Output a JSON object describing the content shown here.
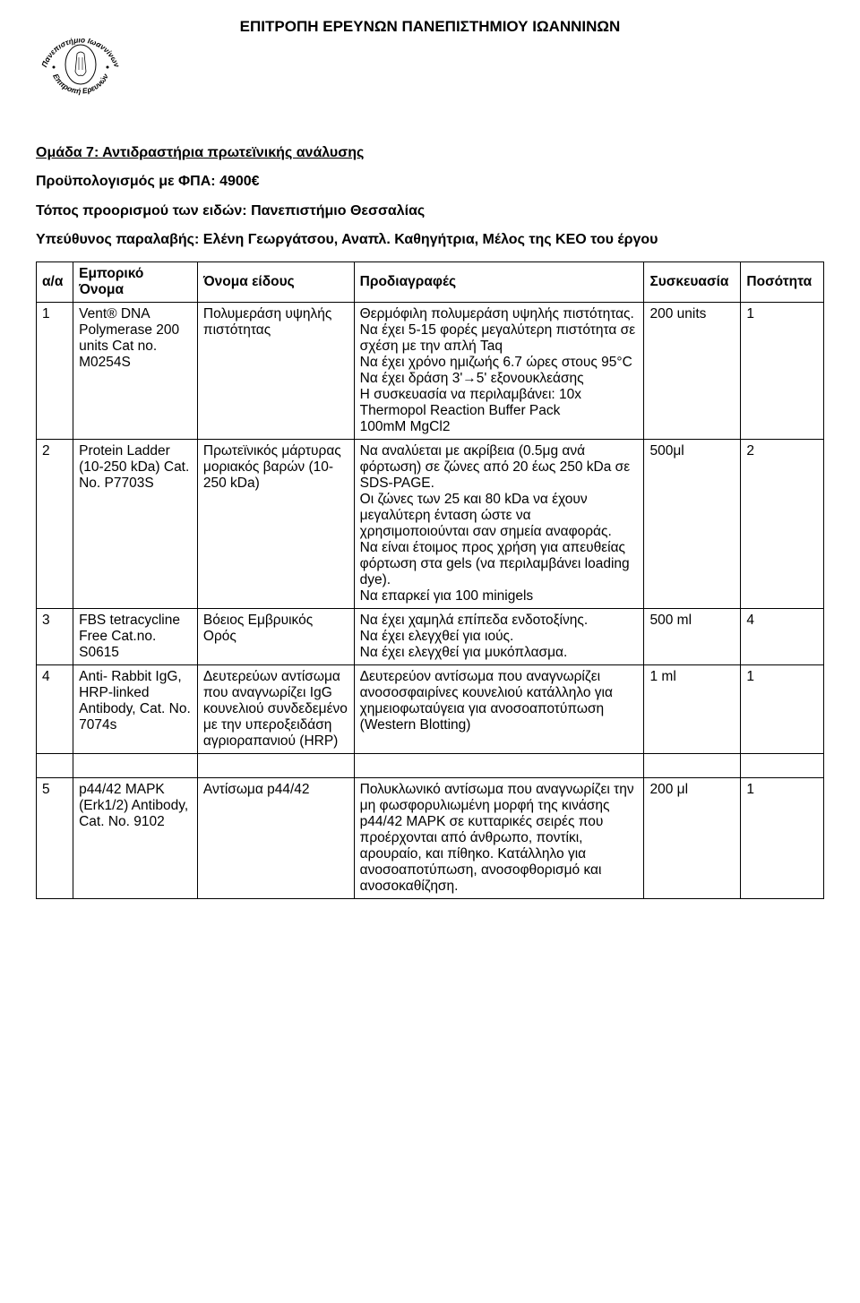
{
  "header_title": "ΕΠΙΤΡΟΠΗ ΕΡΕΥΝΩΝ ΠΑΝΕΠΙΣΤΗΜΙΟΥ ΙΩΑΝΝΙΝΩΝ",
  "seal": {
    "outer_top": "Πανεπιστήμιο Ιωαννίνων",
    "outer_bottom": "Επιτροπή Ερευνών"
  },
  "intro": {
    "group_title_label": "Ομάδα 7: Αντιδραστήρια πρωτεϊνικής ανάλυσης",
    "budget_label": "Προϋπολογισμός με ΦΠΑ:",
    "budget_value": "4900€",
    "dest_label": "Τόπος προορισμού των ειδών:",
    "dest_value": "Πανεπιστήμιο Θεσσαλίας",
    "recv_label": "Υπεύθυνος παραλαβής:",
    "recv_value": "Ελένη Γεωργάτσου, Αναπλ. Καθηγήτρια, Μέλος της ΚΕΟ του έργου"
  },
  "columns": {
    "aa": "α/α",
    "emporiko": "Εμπορικό Όνομα",
    "onoma_eidous": "Όνομα είδους",
    "prodiagrafes": "Προδιαγραφές",
    "syskeuasia": "Συσκευασία",
    "posotita": "Ποσότητα"
  },
  "rows": [
    {
      "aa": "1",
      "emporiko": "Vent® DNA Polymerase 200 units Cat no. M0254S",
      "onoma": "Πολυμεράση υψηλής πιστότητας",
      "spec": "Θερμόφιλη πολυμεράση υψηλής πιστότητας.\nΝα έχει 5-15 φορές μεγαλύτερη πιστότητα σε σχέση με την απλή Taq\nΝα έχει χρόνο ημιζωής 6.7 ώρες στους 95°C\nΝα έχει δράση 3'→5' εξονουκλεάσης\nΗ συσκευασία να περιλαμβάνει: 10x Thermopol Reaction Buffer Pack\n100mM MgCl2",
      "pack": "200 units",
      "qty": "1"
    },
    {
      "aa": "2",
      "emporiko": "Protein Ladder (10-250 kDa) Cat. No. P7703S",
      "onoma": "Πρωτεϊνικός μάρτυρας μοριακός βαρών (10-250 kDa)",
      "spec": "Να αναλύεται με ακρίβεια (0.5μg ανά φόρτωση) σε ζώνες από 20 έως 250 kDa σε SDS-PAGE.\nΟι ζώνες των 25 και 80 kDa να έχουν μεγαλύτερη ένταση ώστε να χρησιμοποιούνται σαν σημεία αναφοράς.\nΝα είναι έτοιμος προς χρήση για απευθείας φόρτωση στα gels (να περιλαμβάνει loading dye).\nΝα επαρκεί για 100 minigels",
      "pack": "500μl",
      "qty": "2"
    },
    {
      "aa": "3",
      "emporiko": "FBS tetracycline Free Cat.no. S0615",
      "onoma": "Βόειος Εμβρυικός Ορός",
      "spec": "Να έχει χαμηλά επίπεδα ενδοτοξίνης.\nΝα έχει ελεγχθεί για ιούς.\nΝα έχει ελεγχθεί για μυκόπλασμα.",
      "pack": "500 ml",
      "qty": "4"
    },
    {
      "aa": "4",
      "emporiko": "Anti- Rabbit IgG, HRP-linked Antibody, Cat. No. 7074s",
      "onoma": "Δευτερεύων αντίσωμα που αναγνωρίζει IgG κουνελιού συνδεδεμένο με την υπεροξειδάση αγριοραπανιού (HRP)",
      "spec": "Δευτερεύον αντίσωμα που αναγνωρίζει ανοσοσφαιρίνες κουνελιού κατάλληλο για χημειοφωταύγεια για ανοσοαποτύπωση (Western Blotting)",
      "pack": "1 ml",
      "qty": "1"
    },
    {
      "aa": "5",
      "emporiko": "p44/42 MAPK (Erk1/2) Antibody, Cat. No. 9102",
      "onoma": "Αντίσωμα p44/42",
      "spec": "Πολυκλωνικό αντίσωμα που αναγνωρίζει την μη φωσφορυλιωμένη μορφή της κινάσης p44/42 MAPK σε κυτταρικές σειρές που προέρχονται από άνθρωπο, ποντίκι, αρουραίο, και πίθηκο. Κατάλληλο για ανοσοαποτύπωση, ανοσοφθορισμό και ανοσοκαθίζηση.",
      "pack": "200 μl",
      "qty": "1"
    }
  ]
}
